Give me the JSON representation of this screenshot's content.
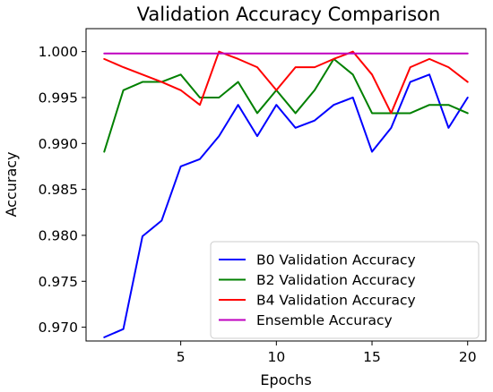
{
  "chart_data": {
    "type": "line",
    "title": "Validation Accuracy Comparison",
    "xlabel": "Epochs",
    "ylabel": "Accuracy",
    "xlim": [
      0.05,
      20.95
    ],
    "ylim": [
      0.9685,
      1.0025
    ],
    "xticks": [
      5,
      10,
      15,
      20
    ],
    "xtick_labels": [
      "5",
      "10",
      "15",
      "20"
    ],
    "yticks": [
      0.97,
      0.975,
      0.98,
      0.985,
      0.99,
      0.995,
      1.0
    ],
    "ytick_labels": [
      "0.970",
      "0.975",
      "0.980",
      "0.985",
      "0.990",
      "0.995",
      "1.000"
    ],
    "grid": false,
    "legend_position": "lower-right",
    "x": [
      1,
      2,
      3,
      4,
      5,
      6,
      7,
      8,
      9,
      10,
      11,
      12,
      13,
      14,
      15,
      16,
      17,
      18,
      19,
      20
    ],
    "series": [
      {
        "name": "B0 Validation Accuracy",
        "color": "#0000ff",
        "values": [
          0.9689,
          0.9698,
          0.9799,
          0.9816,
          0.9875,
          0.9883,
          0.9908,
          0.9942,
          0.9908,
          0.9942,
          0.9917,
          0.9925,
          0.9942,
          0.995,
          0.9891,
          0.9917,
          0.9967,
          0.9975,
          0.9917,
          0.995
        ]
      },
      {
        "name": "B2 Validation Accuracy",
        "color": "#008000",
        "values": [
          0.9891,
          0.9958,
          0.9967,
          0.9967,
          0.9975,
          0.995,
          0.995,
          0.9967,
          0.9933,
          0.9958,
          0.9933,
          0.9958,
          0.9992,
          0.9975,
          0.9933,
          0.9933,
          0.9933,
          0.9942,
          0.9942,
          0.9933
        ]
      },
      {
        "name": "B4 Validation Accuracy",
        "color": "#ff0000",
        "values": [
          0.9992,
          0.9983,
          0.9975,
          0.9967,
          0.9958,
          0.9942,
          1.0,
          0.9992,
          0.9983,
          0.9958,
          0.9983,
          0.9983,
          0.9992,
          1.0,
          0.9975,
          0.9933,
          0.9983,
          0.9992,
          0.9983,
          0.9967
        ]
      },
      {
        "name": "Ensemble Accuracy",
        "color": "#bf00bf",
        "values": [
          0.9998,
          0.9998,
          0.9998,
          0.9998,
          0.9998,
          0.9998,
          0.9998,
          0.9998,
          0.9998,
          0.9998,
          0.9998,
          0.9998,
          0.9998,
          0.9998,
          0.9998,
          0.9998,
          0.9998,
          0.9998,
          0.9998,
          0.9998
        ]
      }
    ]
  }
}
